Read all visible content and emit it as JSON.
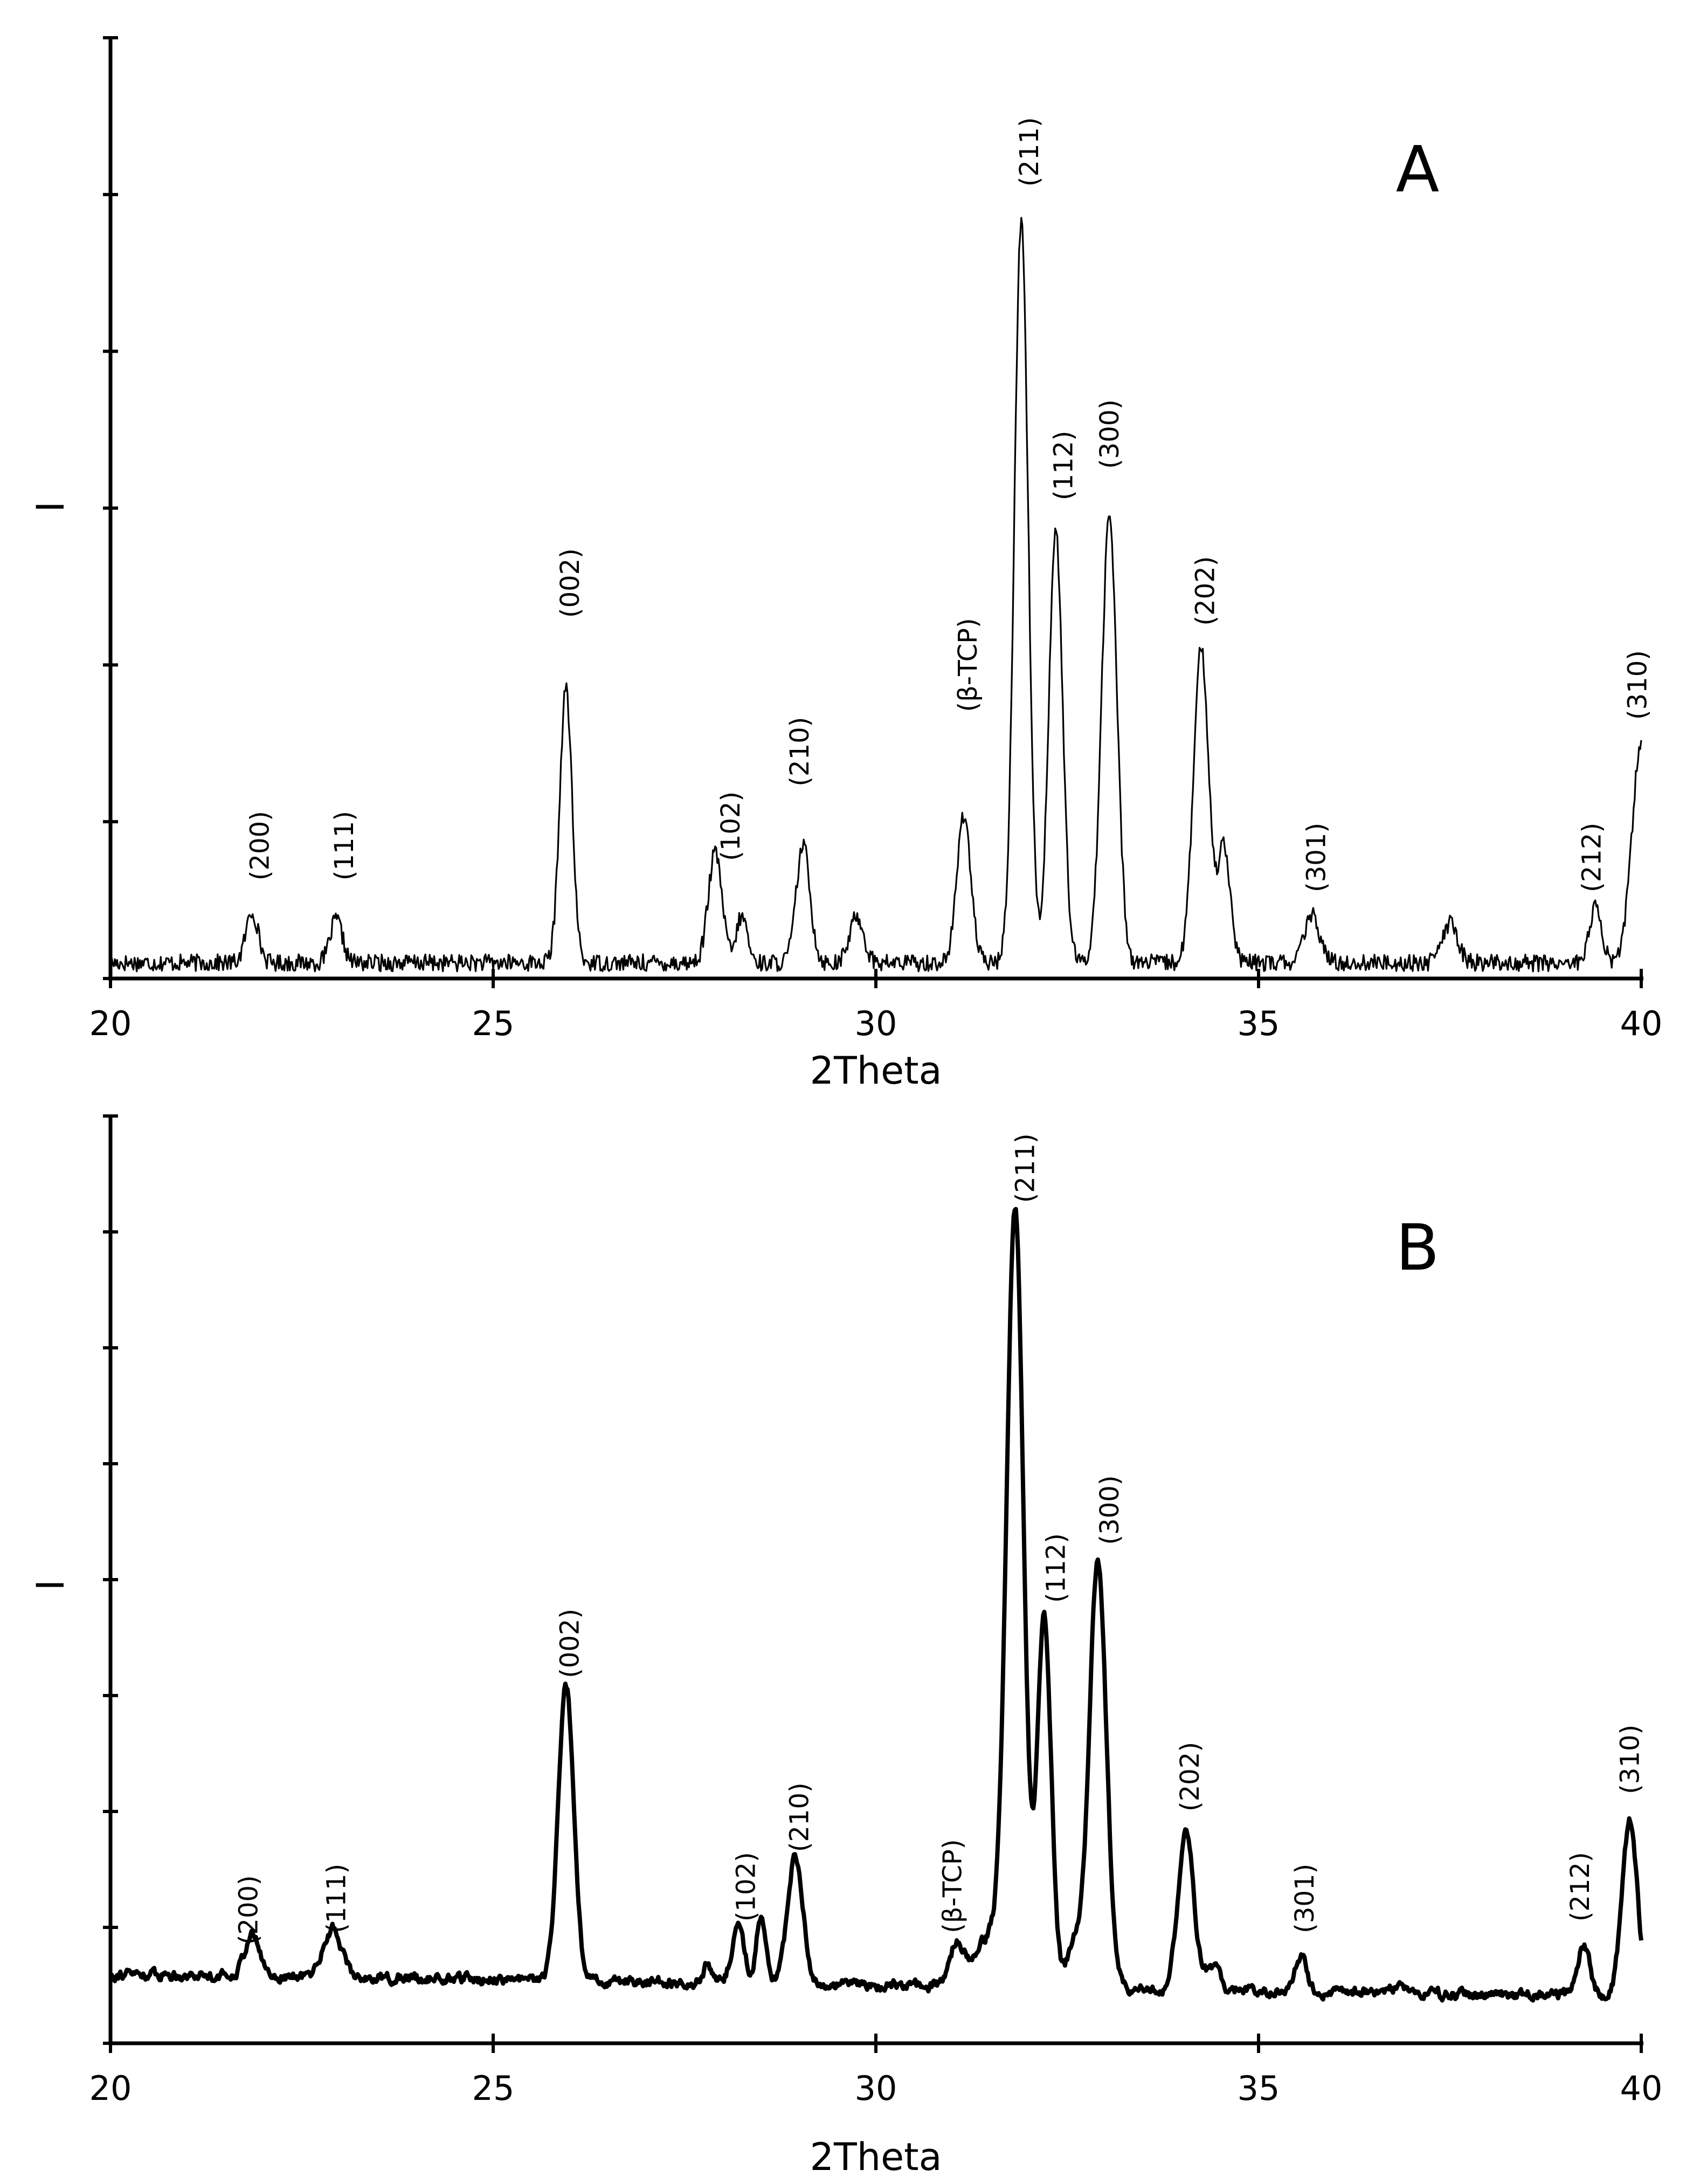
{
  "chart_data": [
    {
      "type": "line",
      "panel_label": "A",
      "xlabel": "2Theta",
      "ylabel": "I",
      "xlim": [
        20,
        40
      ],
      "ylim": [
        0,
        12
      ],
      "x_ticks": [
        "20",
        "25",
        "30",
        "35",
        "40"
      ],
      "y_ticks_labeled": false,
      "line_style": "thin",
      "series": [
        {
          "baseline": 0.2,
          "peaks": [
            {
              "x": 21.85,
              "h": 0.65,
              "w": 0.08
            },
            {
              "x": 22.95,
              "h": 0.55,
              "w": 0.08
            },
            {
              "x": 25.95,
              "h": 3.5,
              "w": 0.08
            },
            {
              "x": 27.9,
              "h": 1.4,
              "w": 0.09
            },
            {
              "x": 28.25,
              "h": 0.6,
              "w": 0.07
            },
            {
              "x": 29.05,
              "h": 1.5,
              "w": 0.09
            },
            {
              "x": 29.75,
              "h": 0.6,
              "w": 0.09
            },
            {
              "x": 31.15,
              "h": 1.9,
              "w": 0.09
            },
            {
              "x": 31.9,
              "h": 9.5,
              "w": 0.09
            },
            {
              "x": 32.35,
              "h": 5.5,
              "w": 0.09
            },
            {
              "x": 33.05,
              "h": 5.7,
              "w": 0.1
            },
            {
              "x": 34.25,
              "h": 4.0,
              "w": 0.1
            },
            {
              "x": 34.55,
              "h": 1.5,
              "w": 0.08
            },
            {
              "x": 35.7,
              "h": 0.6,
              "w": 0.1
            },
            {
              "x": 37.5,
              "h": 0.5,
              "w": 0.1
            },
            {
              "x": 39.4,
              "h": 0.7,
              "w": 0.08
            },
            {
              "x": 40.0,
              "h": 2.8,
              "w": 0.12
            }
          ]
        }
      ],
      "annotations": [
        {
          "text": "(200)",
          "x": 21.95,
          "y": 1.25
        },
        {
          "text": "(111)",
          "x": 23.05,
          "y": 1.25
        },
        {
          "text": "(002)",
          "x": 26.0,
          "y": 4.6
        },
        {
          "text": "(102)",
          "x": 28.1,
          "y": 1.5
        },
        {
          "text": "(210)",
          "x": 29.0,
          "y": 2.45
        },
        {
          "text": "(β-TCP)",
          "x": 31.2,
          "y": 3.4
        },
        {
          "text": "(211)",
          "x": 32.0,
          "y": 10.1
        },
        {
          "text": "(112)",
          "x": 32.45,
          "y": 6.1
        },
        {
          "text": "(300)",
          "x": 33.05,
          "y": 6.5
        },
        {
          "text": "(202)",
          "x": 34.3,
          "y": 4.5
        },
        {
          "text": "(301)",
          "x": 35.75,
          "y": 1.1
        },
        {
          "text": "(212)",
          "x": 39.35,
          "y": 1.1
        },
        {
          "text": "(310)",
          "x": 39.95,
          "y": 3.3
        }
      ]
    },
    {
      "type": "line",
      "panel_label": "B",
      "xlabel": "2Theta",
      "ylabel": "I",
      "xlim": [
        20,
        40
      ],
      "ylim": [
        0,
        8
      ],
      "x_ticks": [
        "20",
        "25",
        "30",
        "35",
        "40"
      ],
      "y_ticks_labeled": false,
      "line_style": "thick",
      "series": [
        {
          "baseline_left": 0.6,
          "baseline_right": 0.4,
          "peaks": [
            {
              "x": 21.85,
              "h": 0.35,
              "w": 0.1
            },
            {
              "x": 22.9,
              "h": 0.42,
              "w": 0.12
            },
            {
              "x": 25.95,
              "h": 2.55,
              "w": 0.1
            },
            {
              "x": 27.8,
              "h": 0.15,
              "w": 0.06
            },
            {
              "x": 28.2,
              "h": 0.5,
              "w": 0.08
            },
            {
              "x": 28.5,
              "h": 0.6,
              "w": 0.06
            },
            {
              "x": 28.95,
              "h": 1.1,
              "w": 0.1
            },
            {
              "x": 31.05,
              "h": 0.35,
              "w": 0.1
            },
            {
              "x": 31.5,
              "h": 0.45,
              "w": 0.2
            },
            {
              "x": 31.82,
              "h": 6.6,
              "w": 0.11
            },
            {
              "x": 32.2,
              "h": 3.2,
              "w": 0.09
            },
            {
              "x": 32.6,
              "h": 0.4,
              "w": 0.1
            },
            {
              "x": 32.9,
              "h": 3.7,
              "w": 0.11
            },
            {
              "x": 34.05,
              "h": 1.4,
              "w": 0.1
            },
            {
              "x": 34.4,
              "h": 0.2,
              "w": 0.1
            },
            {
              "x": 35.55,
              "h": 0.3,
              "w": 0.08
            },
            {
              "x": 36.8,
              "h": 0.06,
              "w": 0.15
            },
            {
              "x": 39.25,
              "h": 0.45,
              "w": 0.08
            },
            {
              "x": 39.85,
              "h": 1.5,
              "w": 0.1
            }
          ]
        }
      ],
      "annotations": [
        {
          "text": "(200)",
          "x": 21.8,
          "y": 0.85
        },
        {
          "text": "(111)",
          "x": 22.95,
          "y": 0.95
        },
        {
          "text": "(002)",
          "x": 26.0,
          "y": 3.15
        },
        {
          "text": "(102)",
          "x": 28.3,
          "y": 1.05
        },
        {
          "text": "(210)",
          "x": 29.0,
          "y": 1.65
        },
        {
          "text": "(β-TCP)",
          "x": 31.0,
          "y": 0.95
        },
        {
          "text": "(211)",
          "x": 31.95,
          "y": 7.25
        },
        {
          "text": "(112)",
          "x": 32.35,
          "y": 3.8
        },
        {
          "text": "(300)",
          "x": 33.05,
          "y": 4.3
        },
        {
          "text": "(202)",
          "x": 34.1,
          "y": 2.0
        },
        {
          "text": "(301)",
          "x": 35.6,
          "y": 0.95
        },
        {
          "text": "(212)",
          "x": 39.2,
          "y": 1.05
        },
        {
          "text": "(310)",
          "x": 39.85,
          "y": 2.15
        }
      ]
    }
  ]
}
